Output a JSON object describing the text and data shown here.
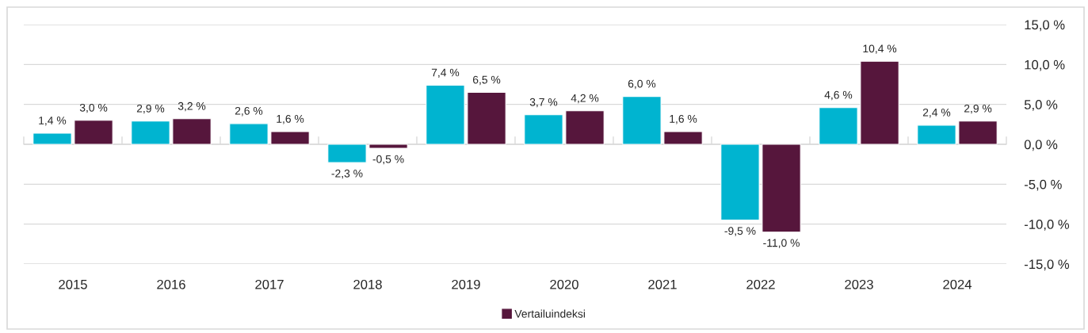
{
  "chart_data": {
    "type": "bar",
    "categories": [
      "2015",
      "2016",
      "2017",
      "2018",
      "2019",
      "2020",
      "2021",
      "2022",
      "2023",
      "2024"
    ],
    "series": [
      {
        "color": "#00b4d0",
        "values": [
          1.4,
          2.9,
          2.6,
          -2.3,
          7.4,
          3.7,
          6.0,
          -9.5,
          4.6,
          2.4
        ],
        "value_labels": [
          "1,4 %",
          "2,9 %",
          "2,6 %",
          "-2,3 %",
          "7,4 %",
          "3,7 %",
          "6,0 %",
          "-9,5 %",
          "4,6 %",
          "2,4 %"
        ]
      },
      {
        "name": "Vertailuindeksi",
        "color": "#56163c",
        "values": [
          3.0,
          3.2,
          1.6,
          -0.5,
          6.5,
          4.2,
          1.6,
          -11.0,
          10.4,
          2.9
        ],
        "value_labels": [
          "3,0 %",
          "3,2 %",
          "1,6 %",
          "-0,5 %",
          "6,5 %",
          "4,2 %",
          "1,6 %",
          "-11,0 %",
          "10,4 %",
          "2,9 %"
        ]
      }
    ],
    "ylim": [
      -15,
      15
    ],
    "yticks": [
      {
        "value": 15,
        "label": "15,0 %"
      },
      {
        "value": 10,
        "label": "10,0 %"
      },
      {
        "value": 5,
        "label": "5,0 %"
      },
      {
        "value": 0,
        "label": "0,0 %"
      },
      {
        "value": -5,
        "label": "-5,0 %"
      },
      {
        "value": -10,
        "label": "-10,0 %"
      },
      {
        "value": -15,
        "label": "-15,0 %"
      }
    ],
    "grid": "y",
    "legend": "bottom"
  }
}
